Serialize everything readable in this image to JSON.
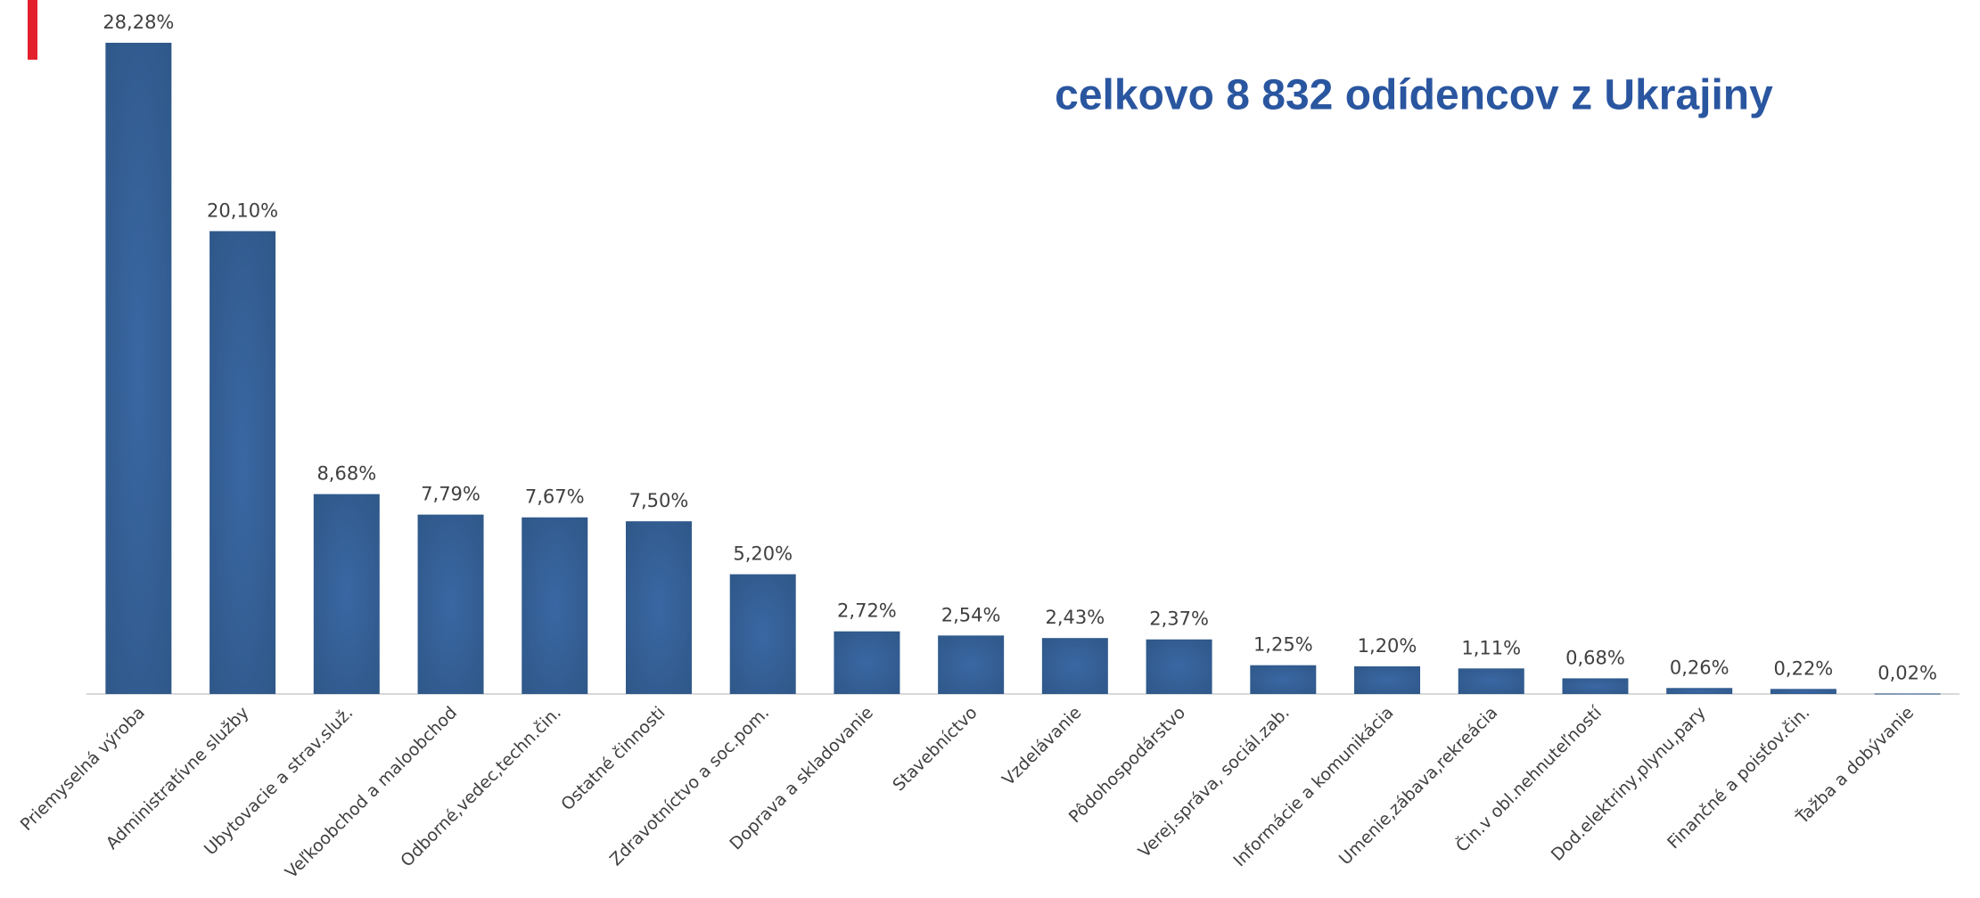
{
  "chart_data": {
    "type": "bar",
    "title": "celkovo 8 832 odídencov z Ukrajiny",
    "categories": [
      "Priemyselná výroba",
      "Administratívne služby",
      "Ubytovacie a strav.služ.",
      "Veľkoobchod a maloobchod",
      "Odborné,vedec,techn.čin.",
      "Ostatné činnosti",
      "Zdravotníctvo a soc.pom.",
      "Doprava a skladovanie",
      "Stavebníctvo",
      "Vzdelávanie",
      "Pôdohospodárstvo",
      "Verej.správa, sociál.zab.",
      "Informácie a komunikácia",
      "Umenie,zábava,rekreácia",
      "Čin.v obl.nehnuteľností",
      "Dod.elektriny,plynu,pary",
      "Finančné a poisťov.čin.",
      "Ťažba a dobývanie"
    ],
    "values": [
      28.28,
      20.1,
      8.68,
      7.79,
      7.67,
      7.5,
      5.2,
      2.72,
      2.54,
      2.43,
      2.37,
      1.25,
      1.2,
      1.11,
      0.68,
      0.26,
      0.22,
      0.02
    ],
    "value_labels": [
      "28,28%",
      "20,10%",
      "8,68%",
      "7,79%",
      "7,67%",
      "7,50%",
      "5,20%",
      "2,72%",
      "2,54%",
      "2,43%",
      "2,37%",
      "1,25%",
      "1,20%",
      "1,11%",
      "0,68%",
      "0,26%",
      "0,22%",
      "0,02%"
    ],
    "color": "#3a67a3"
  }
}
